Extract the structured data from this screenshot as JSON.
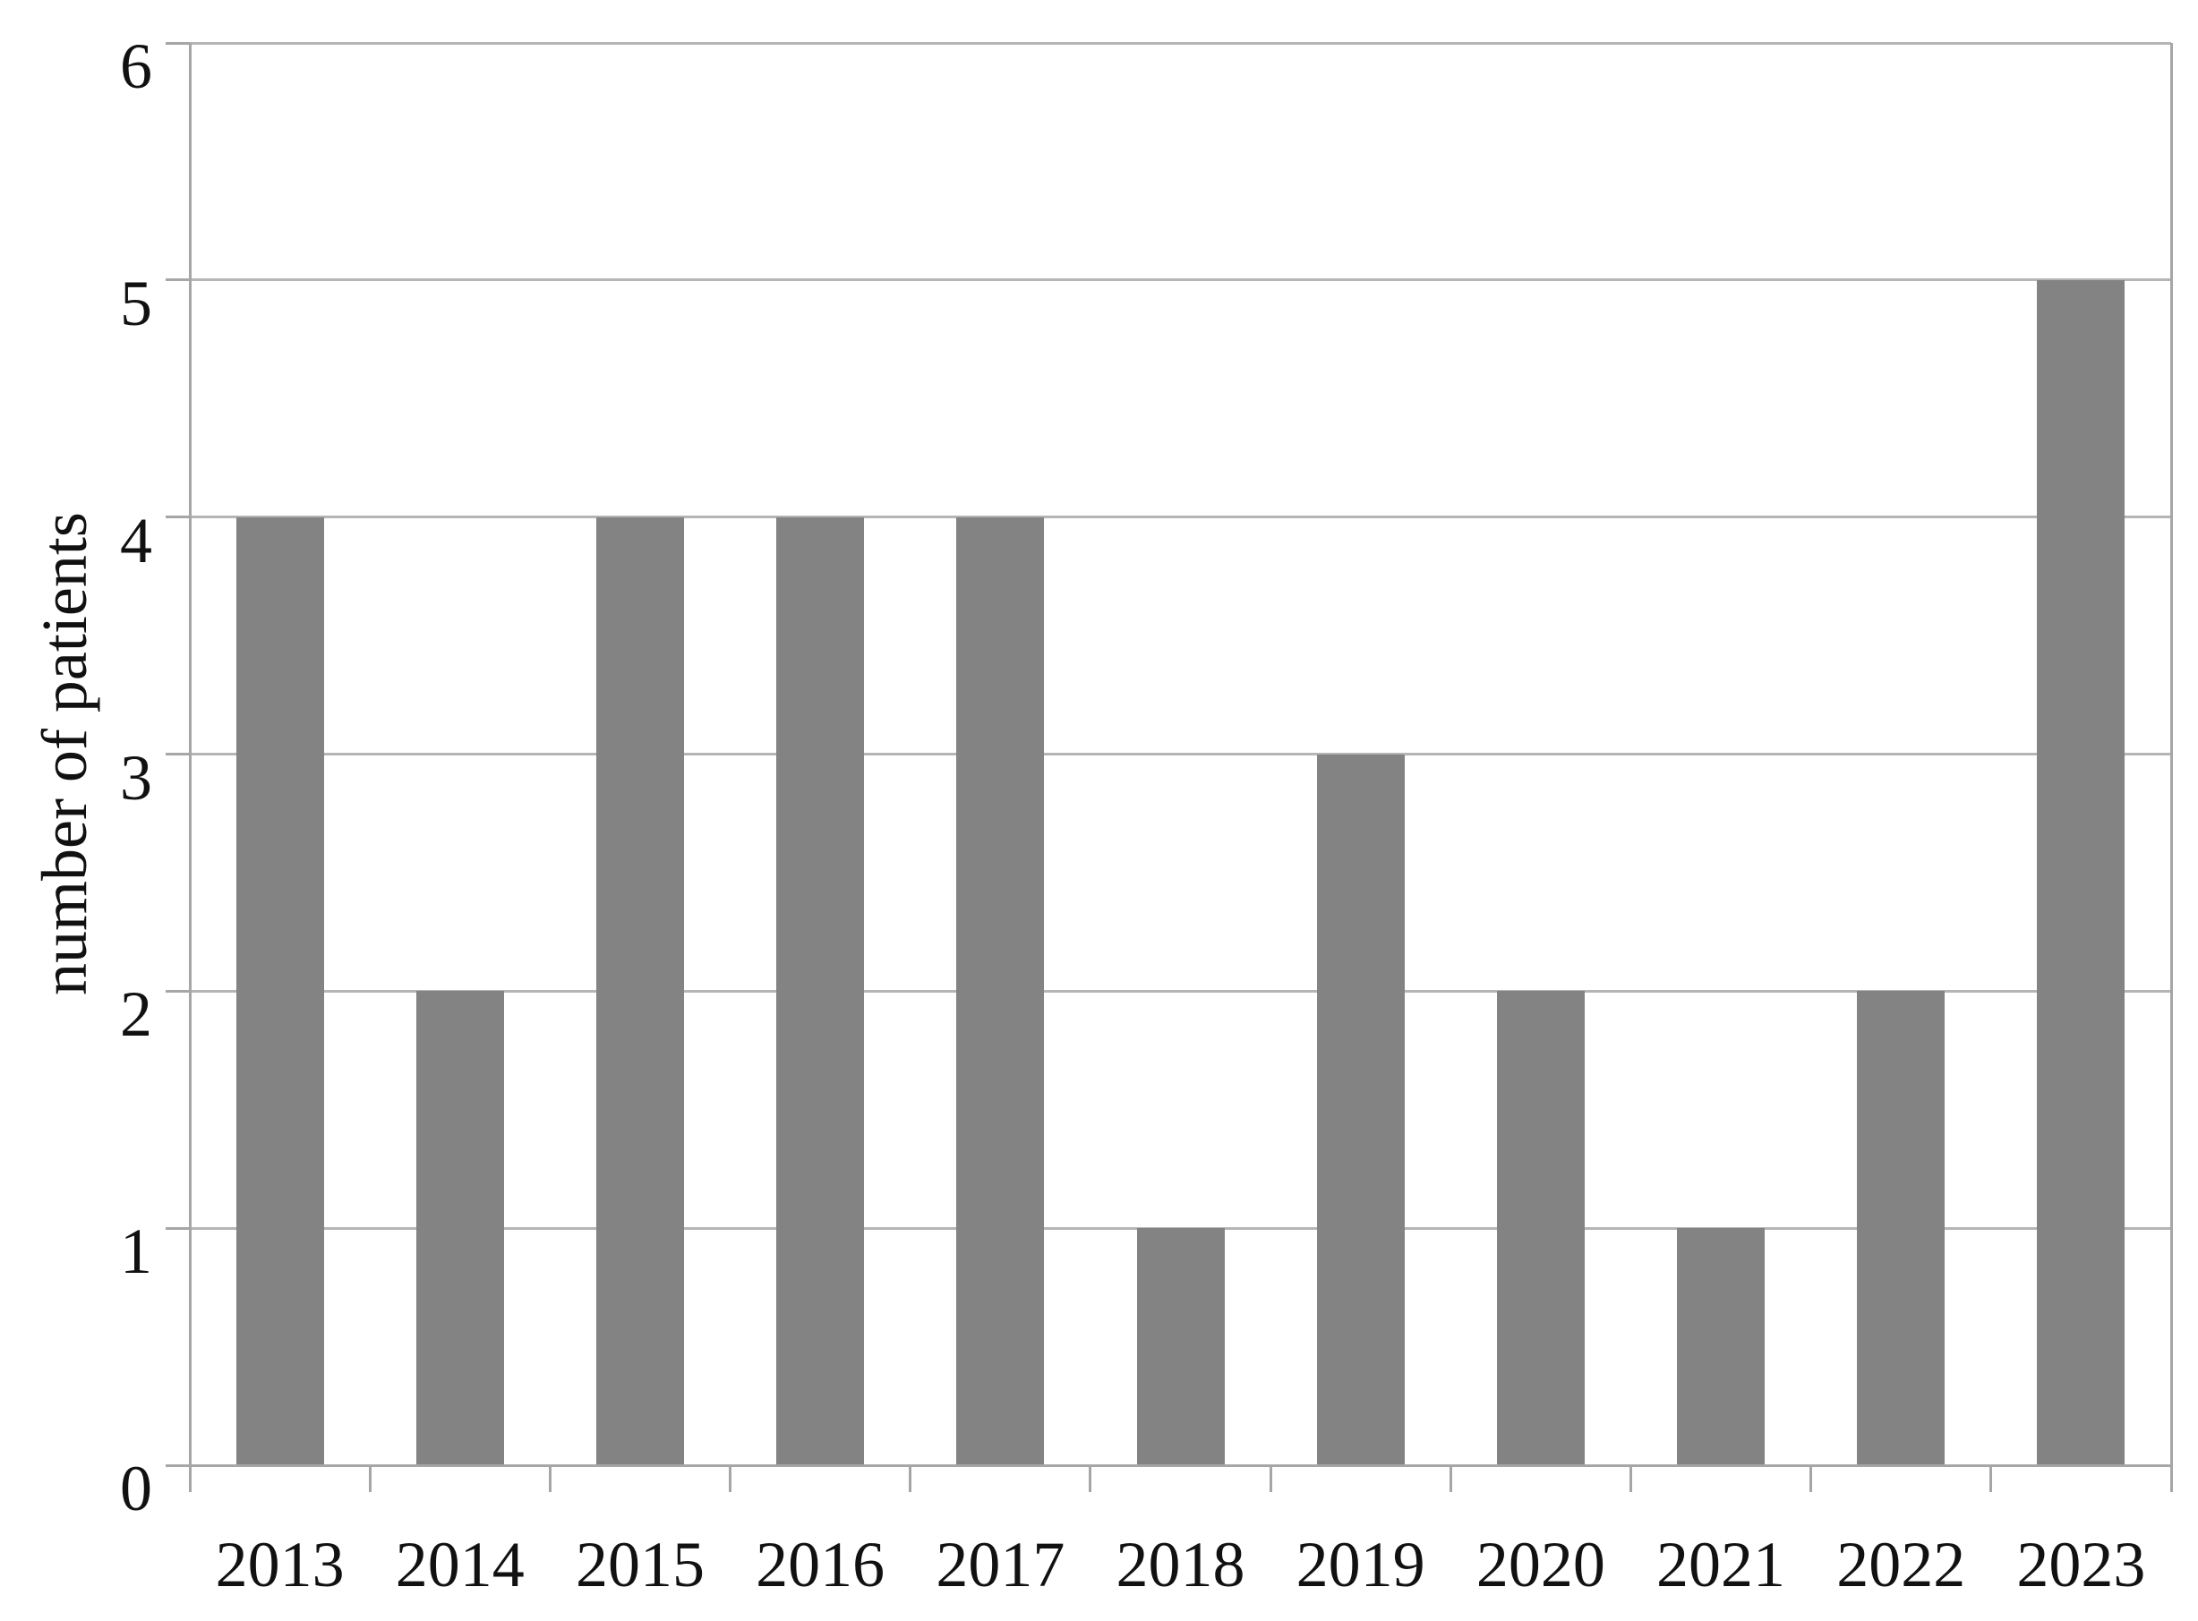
{
  "chart_data": {
    "type": "bar",
    "title": "",
    "categories": [
      "2013",
      "2014",
      "2015",
      "2016",
      "2017",
      "2018",
      "2019",
      "2020",
      "2021",
      "2022",
      "2023"
    ],
    "values": [
      4,
      2,
      4,
      4,
      4,
      1,
      3,
      2,
      1,
      2,
      5
    ],
    "xlabel": "",
    "ylabel": "number of patients",
    "ylim": [
      0,
      6
    ],
    "yticks": [
      0,
      1,
      2,
      3,
      4,
      5,
      6
    ],
    "grid": "horizontal",
    "legend": "none",
    "colors": {
      "bar": "#838383",
      "gridline": "#b5b5b5",
      "axis": "#a6a6a6",
      "text": "#111111",
      "background": "#ffffff"
    }
  }
}
